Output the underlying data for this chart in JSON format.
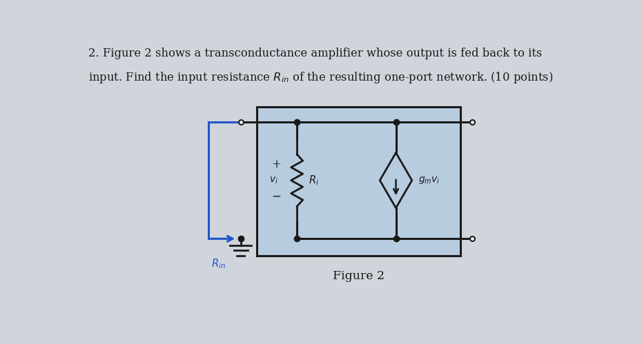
{
  "bg_color": "#d0d5dc",
  "box_bg": "#b8cce0",
  "box_border": "#1a1a1a",
  "wire_color": "#1a1a1a",
  "blue_wire_color": "#2255cc",
  "text_color": "#1a1a1a",
  "title_line1": "2. Figure 2 shows a transconductance amplifier whose output is fed back to its",
  "title_line2": "input. Find the input resistance $R_{in}$ of the resulting one-port network. (10 points)",
  "figure_caption": "Figure 2",
  "rin_label": "$R_{in}$",
  "vi_label": "$v_i$",
  "ri_label": "$R_i$",
  "gm_label": "$g_mv_i$",
  "plus_label": "+",
  "minus_label": "−",
  "fig_w": 9.3,
  "fig_h": 4.99
}
